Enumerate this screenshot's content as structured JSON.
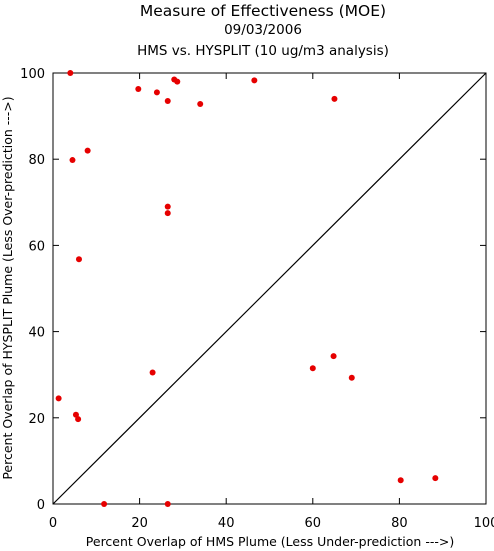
{
  "chart_data": {
    "type": "scatter",
    "title": "Measure of Effectiveness (MOE)",
    "subtitle_date": "09/03/2006",
    "subtitle_analysis": "HMS vs. HYSPLIT  (10 ug/m3 analysis)",
    "xlabel": "Percent Overlap of HMS Plume (Less Under-prediction --->)",
    "ylabel": "Percent Overlap of HYSPLIT Plume (Less Over-prediction --->)",
    "xlim": [
      0,
      100
    ],
    "ylim": [
      0,
      100
    ],
    "x_ticks": [
      "0",
      "20",
      "40",
      "60",
      "80",
      "100"
    ],
    "y_ticks": [
      "0",
      "20",
      "40",
      "60",
      "80",
      "100"
    ],
    "grid": false,
    "diagonal_line": true,
    "point_color": "#e60000",
    "series": [
      {
        "x": [
          4,
          19.7,
          24,
          26.5,
          28,
          28.7,
          34,
          46.5,
          65,
          4.5,
          8,
          26.5,
          26.5,
          6,
          1.3,
          5.3,
          5.8,
          23,
          60,
          64.8,
          69,
          80.3,
          88.3,
          11.8,
          26.5
        ],
        "y": [
          100,
          96.3,
          95.5,
          93.5,
          98.5,
          98,
          92.8,
          98.3,
          94,
          79.8,
          82,
          69,
          67.5,
          56.8,
          24.5,
          20.7,
          19.7,
          30.5,
          31.5,
          34.3,
          29.3,
          5.5,
          6,
          0,
          0
        ]
      }
    ]
  }
}
